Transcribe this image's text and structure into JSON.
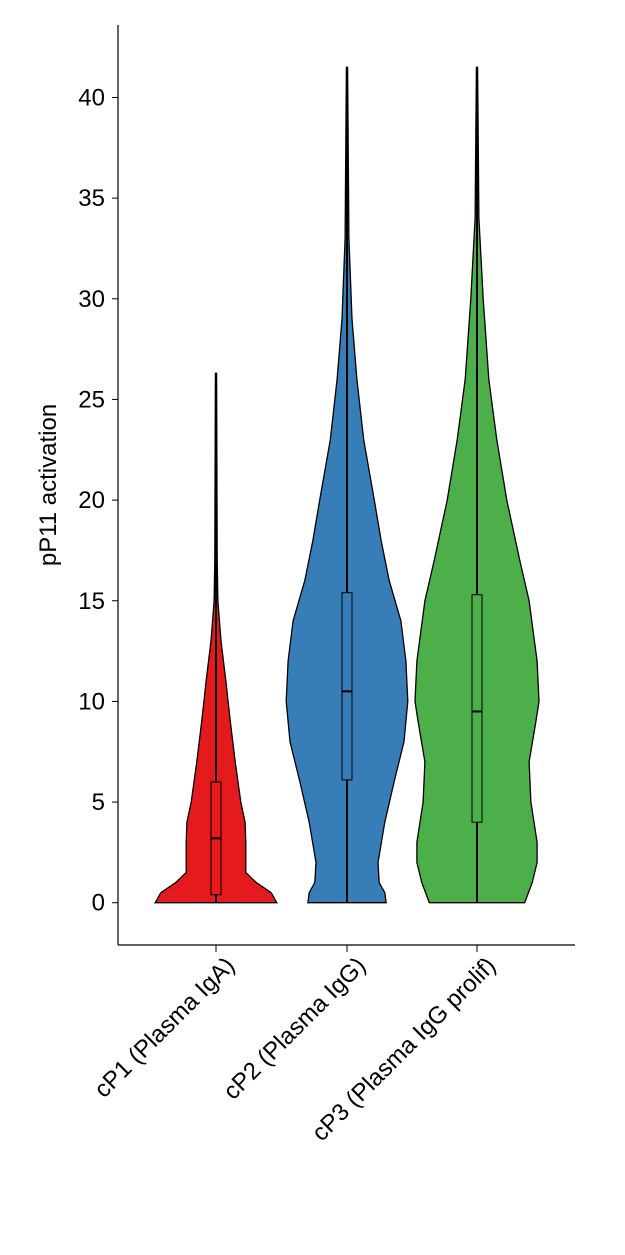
{
  "chart_data": {
    "type": "violin",
    "y_label": "pP11 activation",
    "categories": [
      "cP1 (Plasma IgA)",
      "cP2 (Plasma IgG)",
      "cP3 (Plasma IgG prolif)"
    ],
    "ylim": [
      -2.1,
      43.6
    ],
    "yticks": [
      0,
      5,
      10,
      15,
      20,
      25,
      30,
      35,
      40
    ],
    "series": [
      {
        "color": "#e41a1c",
        "q1": 0.4,
        "median": 3.2,
        "q3": 6.0,
        "whisker": [
          0,
          26.3
        ],
        "density_y": [
          0,
          0.5,
          1,
          1.5,
          3,
          4,
          5,
          7,
          9,
          11,
          13,
          15,
          17,
          26.3
        ],
        "density": [
          0.98,
          0.89,
          0.65,
          0.48,
          0.48,
          0.47,
          0.4,
          0.31,
          0.23,
          0.16,
          0.08,
          0.03,
          0.02,
          0.01
        ]
      },
      {
        "color": "#377eb8",
        "q1": 6.1,
        "median": 10.5,
        "q3": 15.4,
        "whisker": [
          0,
          41.5
        ],
        "density_y": [
          0,
          0.5,
          1,
          2,
          4,
          6,
          8,
          10,
          12,
          14,
          16,
          18,
          20,
          23,
          26,
          29,
          33,
          41.5
        ],
        "density": [
          0.63,
          0.61,
          0.52,
          0.5,
          0.61,
          0.76,
          0.92,
          0.98,
          0.95,
          0.87,
          0.68,
          0.55,
          0.44,
          0.27,
          0.16,
          0.08,
          0.03,
          0.01
        ]
      },
      {
        "color": "#4daf4a",
        "q1": 4.0,
        "median": 9.5,
        "q3": 15.3,
        "whisker": [
          0,
          41.5
        ],
        "density_y": [
          0,
          1,
          2,
          3,
          5,
          7,
          9,
          10,
          12,
          15,
          17,
          20,
          23,
          26,
          30,
          34,
          41.5
        ],
        "density": [
          0.77,
          0.89,
          0.97,
          0.97,
          0.87,
          0.84,
          0.95,
          1.0,
          0.97,
          0.84,
          0.69,
          0.48,
          0.32,
          0.19,
          0.1,
          0.03,
          0.01
        ]
      }
    ]
  }
}
